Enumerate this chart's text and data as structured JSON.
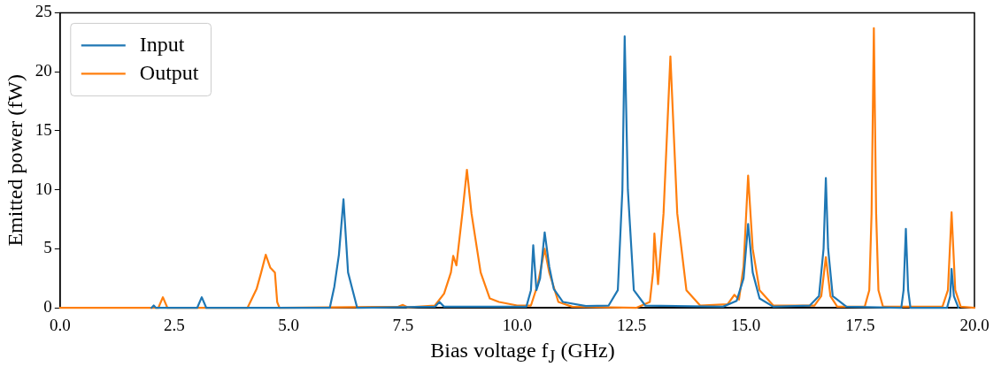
{
  "chart_data": {
    "type": "line",
    "xlabel": "Bias voltage f$_{J}$ (GHz)",
    "ylabel": "Emitted power (fW)",
    "xlim": [
      0,
      20
    ],
    "xticks": [
      {
        "value": 0,
        "label": "0.0"
      },
      {
        "value": 2.5,
        "label": "2.5"
      },
      {
        "value": 5,
        "label": "5.0"
      },
      {
        "value": 7.5,
        "label": "7.5"
      },
      {
        "value": 10,
        "label": "10.0"
      },
      {
        "value": 12.5,
        "label": "12.5"
      },
      {
        "value": 15,
        "label": "15.0"
      },
      {
        "value": 17.5,
        "label": "17.5"
      },
      {
        "value": 20,
        "label": "20.0"
      }
    ],
    "ylim": [
      0,
      25
    ],
    "yticks": [
      0,
      5,
      10,
      15,
      20,
      25
    ],
    "grid": false,
    "legend": "top left",
    "marker": "none",
    "line_style": "solid",
    "series": [
      {
        "name": "Input",
        "color": "#1f77b4",
        "x": [
          2.0,
          2.05,
          2.1,
          3.0,
          3.1,
          3.2,
          5.9,
          6.0,
          6.1,
          6.2,
          6.3,
          6.4,
          6.5,
          8.2,
          8.3,
          8.4,
          10.2,
          10.3,
          10.35,
          10.42,
          10.5,
          10.6,
          10.7,
          10.8,
          11.0,
          11.5,
          12.0,
          12.2,
          12.3,
          12.35,
          12.42,
          12.55,
          12.8,
          14.5,
          14.8,
          14.95,
          15.05,
          15.15,
          15.3,
          15.6,
          16.4,
          16.6,
          16.7,
          16.75,
          16.8,
          16.9,
          17.2,
          18.4,
          18.45,
          18.5,
          18.55,
          18.6,
          19.4,
          19.47,
          19.5,
          19.55,
          19.65
        ],
        "values": [
          0,
          0.2,
          0,
          0,
          0.9,
          0,
          0,
          1.8,
          4.5,
          9.2,
          3.0,
          1.5,
          0,
          0.1,
          0.5,
          0.1,
          0.1,
          1.5,
          5.3,
          1.5,
          2.5,
          6.4,
          3.5,
          1.6,
          0.5,
          0.15,
          0.2,
          1.5,
          10,
          23.0,
          10,
          1.5,
          0.2,
          0.1,
          0.6,
          2.5,
          7.1,
          3,
          0.8,
          0.1,
          0.2,
          1,
          5,
          11.0,
          5,
          1,
          0.1,
          0,
          1.5,
          6.7,
          1.5,
          0,
          0,
          1,
          3.3,
          1,
          0
        ]
      },
      {
        "name": "Output",
        "color": "#ff7f0e",
        "x": [
          0,
          2.15,
          2.25,
          2.35,
          4.1,
          4.2,
          4.3,
          4.4,
          4.5,
          4.6,
          4.7,
          4.75,
          4.8,
          7.4,
          7.5,
          7.6,
          8.2,
          8.4,
          8.55,
          8.6,
          8.67,
          8.8,
          8.9,
          9.0,
          9.2,
          9.4,
          9.6,
          10.0,
          10.3,
          10.45,
          10.6,
          10.7,
          10.9,
          11.2,
          12.6,
          12.9,
          12.97,
          13.0,
          13.08,
          13.2,
          13.35,
          13.5,
          13.7,
          14.0,
          14.6,
          14.75,
          14.85,
          14.95,
          15.05,
          15.15,
          15.3,
          15.6,
          16.5,
          16.65,
          16.75,
          16.85,
          17.0,
          17.6,
          17.7,
          17.75,
          17.8,
          17.85,
          17.9,
          18.0,
          19.3,
          19.42,
          19.5,
          19.58,
          19.7,
          20
        ],
        "values": [
          0,
          0,
          0.9,
          0,
          0,
          0.8,
          1.6,
          3.0,
          4.5,
          3.4,
          3.0,
          0.5,
          0,
          0.1,
          0.25,
          0.05,
          0.2,
          1.2,
          3,
          4.4,
          3.6,
          8,
          11.7,
          8,
          3,
          0.8,
          0.5,
          0.2,
          0.2,
          2,
          5.0,
          3,
          0.5,
          0.1,
          0,
          0.5,
          3,
          6.3,
          2.0,
          8,
          21.3,
          8,
          1.5,
          0.2,
          0.3,
          1.1,
          0.7,
          3.5,
          11.2,
          5,
          1.5,
          0.2,
          0.2,
          1,
          4.3,
          1,
          0.1,
          0.1,
          1.5,
          8,
          23.7,
          8,
          1.5,
          0.1,
          0.1,
          1.5,
          8.1,
          1.5,
          0.1,
          0
        ]
      }
    ]
  }
}
